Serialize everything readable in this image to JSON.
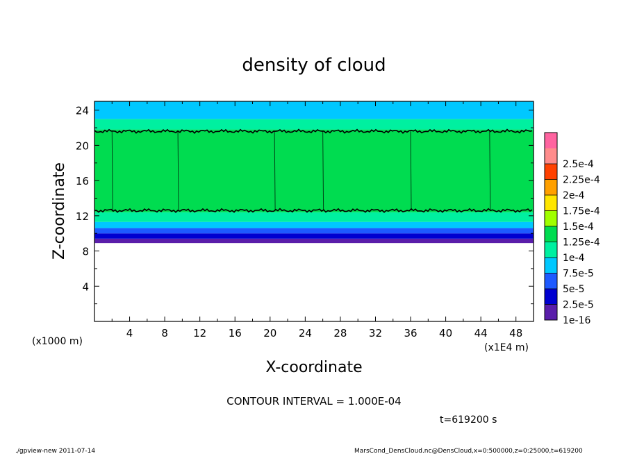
{
  "chart_data": {
    "type": "heatmap",
    "title": "density of cloud",
    "xlabel": "X-coordinate",
    "ylabel": "Z-coordinate",
    "x_unit": "(x1E4 m)",
    "y_unit": "(x1000 m)",
    "xlim": [
      0,
      50
    ],
    "ylim": [
      0,
      25
    ],
    "x_ticks": [
      "4",
      "8",
      "12",
      "16",
      "20",
      "24",
      "28",
      "32",
      "36",
      "40",
      "44",
      "48"
    ],
    "y_ticks": [
      "4",
      "8",
      "12",
      "16",
      "20",
      "24"
    ],
    "colorbar": {
      "levels": [
        "1e-16",
        "2.5e-5",
        "5e-5",
        "7.5e-5",
        "1e-4",
        "1.25e-4",
        "1.5e-4",
        "1.75e-4",
        "2e-4",
        "2.25e-4",
        "2.5e-4"
      ],
      "colors": [
        "#5a1eaa",
        "#0000d0",
        "#1e5aff",
        "#00c8ff",
        "#00f0a0",
        "#00dc50",
        "#a0ff00",
        "#ffe600",
        "#ffa000",
        "#ff4100",
        "#ff8c8c",
        "#ff64a0"
      ]
    },
    "profile": [
      {
        "z_min": 0.0,
        "z_max": 8.9,
        "level": null
      },
      {
        "z_min": 8.9,
        "z_max": 9.4,
        "level": 0
      },
      {
        "z_min": 9.4,
        "z_max": 10.0,
        "level": 1
      },
      {
        "z_min": 10.0,
        "z_max": 10.6,
        "level": 2
      },
      {
        "z_min": 10.6,
        "z_max": 11.3,
        "level": 3
      },
      {
        "z_min": 11.3,
        "z_max": 12.4,
        "level": 4
      },
      {
        "z_min": 12.4,
        "z_max": 21.8,
        "level": 5
      },
      {
        "z_min": 21.8,
        "z_max": 23.0,
        "level": 4
      },
      {
        "z_min": 23.0,
        "z_max": 25.0,
        "level": 3
      }
    ],
    "contour_lines_z": [
      12.6,
      21.6
    ],
    "vertical_streaks_x": [
      2,
      9.5,
      20.5,
      26,
      36,
      45
    ],
    "contour_interval": "CONTOUR INTERVAL = 1.000E-04",
    "time": "t=619200 s"
  },
  "footer": {
    "left": "./gpview-new  2011-07-14",
    "right": "MarsCond_DensCloud.nc@DensCloud,x=0:500000,z=0:25000,t=619200"
  }
}
